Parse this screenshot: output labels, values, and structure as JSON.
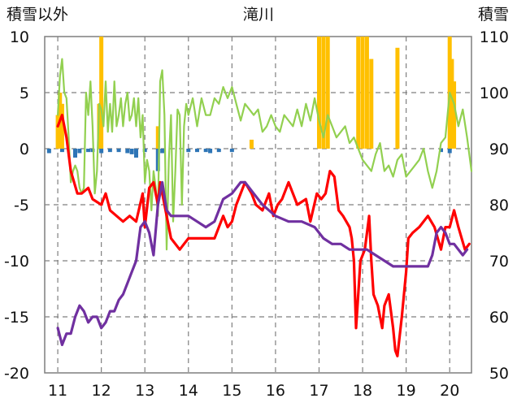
{
  "chart_data": {
    "type": "line",
    "title": "滝川",
    "ylabel_left": "積雪以外",
    "ylabel_right": "積雪",
    "xlim": [
      10.7,
      20.5
    ],
    "ylim_left": [
      -20,
      10
    ],
    "ylim_right": [
      50,
      110
    ],
    "x_ticks": [
      11,
      12,
      13,
      14,
      15,
      16,
      17,
      18,
      19,
      20
    ],
    "y_left_ticks": [
      10,
      5,
      0,
      -5,
      -10,
      -15,
      -20
    ],
    "y_right_ticks": [
      110,
      100,
      90,
      80,
      70,
      60,
      50
    ],
    "grid": "dashed",
    "colors": {
      "red": "#ff0000",
      "purple": "#7030a0",
      "green": "#92d050",
      "orange": "#ffc000",
      "blue": "#2e75b6",
      "axis": "#7f7f7f"
    },
    "series": [
      {
        "color": "red",
        "axis": "left",
        "x": [
          11.0,
          11.1,
          11.2,
          11.3,
          11.45,
          11.55,
          11.7,
          11.8,
          12.0,
          12.1,
          12.2,
          12.35,
          12.5,
          12.65,
          12.8,
          12.95,
          13.0,
          13.1,
          13.2,
          13.3,
          13.35,
          13.5,
          13.6,
          13.8,
          13.9,
          14.0,
          14.2,
          14.4,
          14.6,
          14.8,
          14.9,
          15.0,
          15.1,
          15.3,
          15.45,
          15.55,
          15.7,
          15.85,
          15.95,
          16.05,
          16.15,
          16.3,
          16.5,
          16.7,
          16.8,
          16.95,
          17.05,
          17.15,
          17.25,
          17.35,
          17.45,
          17.55,
          17.7,
          17.75,
          17.8,
          17.85,
          17.95,
          18.05,
          18.15,
          18.2,
          18.25,
          18.35,
          18.45,
          18.5,
          18.6,
          18.7,
          18.75,
          18.8,
          18.9,
          19.0,
          19.05,
          19.15,
          19.3,
          19.5,
          19.65,
          19.8,
          19.9,
          20.0,
          20.1,
          20.2,
          20.35,
          20.45
        ],
        "y": [
          2.0,
          3.0,
          1.0,
          -2.0,
          -4.0,
          -4.0,
          -3.5,
          -4.5,
          -5.0,
          -4.0,
          -5.5,
          -6.0,
          -6.5,
          -6.0,
          -6.5,
          -4.0,
          -7.0,
          -3.5,
          -3.0,
          -5.0,
          -3.0,
          -6.0,
          -8.0,
          -9.0,
          -8.5,
          -8.0,
          -8.0,
          -8.0,
          -8.0,
          -6.0,
          -7.0,
          -6.5,
          -5.0,
          -3.0,
          -4.0,
          -5.0,
          -5.5,
          -4.0,
          -6.0,
          -5.0,
          -4.5,
          -3.0,
          -5.0,
          -4.5,
          -6.5,
          -4.0,
          -4.5,
          -4.0,
          -2.0,
          -2.5,
          -5.5,
          -6.0,
          -7.0,
          -8.0,
          -10.0,
          -16.0,
          -10.0,
          -9.0,
          -6.0,
          -10.0,
          -13.0,
          -14.0,
          -16.0,
          -14.0,
          -13.0,
          -16.0,
          -18.0,
          -18.5,
          -15.0,
          -11.0,
          -8.0,
          -7.5,
          -7.0,
          -6.0,
          -7.0,
          -9.0,
          -7.0,
          -7.0,
          -5.5,
          -7.0,
          -9.0,
          -8.5
        ]
      },
      {
        "color": "purple",
        "axis": "left",
        "x": [
          11.0,
          11.1,
          11.2,
          11.3,
          11.4,
          11.5,
          11.6,
          11.7,
          11.8,
          11.9,
          12.0,
          12.1,
          12.2,
          12.3,
          12.4,
          12.5,
          12.6,
          12.7,
          12.8,
          12.9,
          13.0,
          13.1,
          13.2,
          13.3,
          13.4,
          13.5,
          13.6,
          13.8,
          14.0,
          14.2,
          14.4,
          14.6,
          14.8,
          15.0,
          15.2,
          15.3,
          15.5,
          15.7,
          16.0,
          16.3,
          16.6,
          16.9,
          17.0,
          17.1,
          17.3,
          17.5,
          17.7,
          17.9,
          18.1,
          18.3,
          18.5,
          18.7,
          18.9,
          19.1,
          19.3,
          19.5,
          19.6,
          19.7,
          19.8,
          19.9,
          20.0,
          20.1,
          20.2,
          20.3,
          20.4
        ],
        "y": [
          -16.0,
          -17.5,
          -16.5,
          -16.5,
          -15.0,
          -14.0,
          -14.5,
          -15.5,
          -15.0,
          -15.0,
          -16.0,
          -15.5,
          -14.5,
          -14.5,
          -13.5,
          -13.0,
          -12.0,
          -11.0,
          -10.0,
          -7.0,
          -6.5,
          -7.5,
          -9.5,
          -5.0,
          -3.0,
          -5.5,
          -6.0,
          -6.0,
          -6.0,
          -6.5,
          -7.0,
          -6.5,
          -4.5,
          -4.0,
          -3.0,
          -3.0,
          -4.0,
          -5.0,
          -6.0,
          -6.5,
          -6.5,
          -7.0,
          -7.5,
          -8.0,
          -8.5,
          -8.5,
          -9.0,
          -9.0,
          -9.0,
          -9.5,
          -10.0,
          -10.5,
          -10.5,
          -10.5,
          -10.5,
          -10.5,
          -9.5,
          -7.5,
          -7.0,
          -7.5,
          -8.5,
          -8.5,
          -9.0,
          -9.5,
          -9.0
        ]
      },
      {
        "color": "green",
        "axis": "left",
        "x": [
          11.0,
          11.05,
          11.1,
          11.15,
          11.2,
          11.25,
          11.3,
          11.35,
          11.4,
          11.45,
          11.5,
          11.55,
          11.6,
          11.65,
          11.7,
          11.75,
          11.8,
          11.85,
          11.9,
          11.95,
          12.0,
          12.05,
          12.1,
          12.15,
          12.2,
          12.25,
          12.3,
          12.35,
          12.4,
          12.45,
          12.5,
          12.55,
          12.6,
          12.65,
          12.7,
          12.75,
          12.8,
          12.85,
          12.9,
          12.95,
          13.0,
          13.05,
          13.1,
          13.15,
          13.2,
          13.25,
          13.3,
          13.35,
          13.4,
          13.45,
          13.5,
          13.55,
          13.6,
          13.65,
          13.7,
          13.75,
          13.8,
          13.85,
          13.9,
          13.95,
          14.0,
          14.1,
          14.2,
          14.3,
          14.4,
          14.5,
          14.6,
          14.7,
          14.8,
          14.9,
          15.0,
          15.1,
          15.2,
          15.3,
          15.4,
          15.5,
          15.6,
          15.7,
          15.8,
          15.9,
          16.0,
          16.1,
          16.2,
          16.3,
          16.4,
          16.5,
          16.6,
          16.7,
          16.8,
          16.9,
          17.0,
          17.1,
          17.2,
          17.3,
          17.4,
          17.5,
          17.6,
          17.7,
          17.8,
          17.9,
          18.0,
          18.1,
          18.2,
          18.3,
          18.4,
          18.5,
          18.6,
          18.7,
          18.8,
          18.9,
          19.0,
          19.1,
          19.2,
          19.3,
          19.4,
          19.5,
          19.6,
          19.7,
          19.8,
          19.9,
          20.0,
          20.1,
          20.2,
          20.3,
          20.4,
          20.5
        ],
        "y": [
          3.0,
          6.5,
          8.0,
          5.0,
          4.5,
          1.0,
          -3.0,
          -2.0,
          -1.5,
          -2.0,
          -3.5,
          -4.0,
          -3.5,
          5.0,
          3.0,
          6.0,
          2.0,
          -4.0,
          -2.0,
          4.0,
          3.5,
          2.0,
          6.0,
          1.5,
          4.0,
          1.5,
          6.0,
          2.0,
          3.0,
          4.5,
          2.0,
          4.0,
          5.0,
          2.5,
          3.0,
          4.5,
          2.0,
          4.5,
          1.0,
          3.0,
          -3.0,
          -1.0,
          -2.0,
          -5.5,
          -2.0,
          -3.5,
          -6.0,
          6.0,
          7.0,
          3.0,
          -9.0,
          -1.0,
          3.0,
          -6.5,
          -2.0,
          3.5,
          3.0,
          -5.0,
          2.0,
          4.0,
          3.0,
          4.5,
          2.0,
          4.5,
          3.0,
          3.0,
          4.5,
          4.0,
          5.5,
          4.5,
          5.5,
          4.0,
          2.5,
          4.0,
          3.5,
          3.0,
          3.5,
          1.5,
          2.0,
          3.0,
          2.0,
          1.5,
          3.0,
          2.5,
          2.0,
          3.5,
          2.0,
          4.0,
          2.5,
          4.5,
          2.5,
          1.0,
          3.0,
          2.0,
          1.0,
          1.5,
          2.0,
          0.5,
          1.0,
          0.0,
          -1.0,
          -1.5,
          -2.0,
          -0.5,
          0.5,
          -2.0,
          -1.5,
          -2.5,
          -1.0,
          -0.5,
          -2.5,
          -2.0,
          -1.5,
          -1.0,
          0.0,
          -2.0,
          -3.5,
          -2.0,
          0.5,
          1.0,
          5.0,
          4.0,
          2.0,
          3.5,
          1.0,
          -2.0
        ]
      },
      {
        "color": "orange",
        "type": "bar",
        "axis": "left",
        "x": [
          11.0,
          11.05,
          11.1,
          11.95,
          12.0,
          13.3,
          15.45,
          17.0,
          17.1,
          17.2,
          17.9,
          18.0,
          18.1,
          18.2,
          18.8,
          20.0,
          20.05,
          20.1
        ],
        "y": [
          3.0,
          5.0,
          4.0,
          4.0,
          10.0,
          2.0,
          0.8,
          10.0,
          10.0,
          10.0,
          10.0,
          10.0,
          10.0,
          8.0,
          9.0,
          10.0,
          8.0,
          6.0
        ]
      },
      {
        "color": "blue",
        "type": "bar",
        "axis": "left",
        "x": [
          10.8,
          11.1,
          11.4,
          11.5,
          11.7,
          11.8,
          12.0,
          12.2,
          12.4,
          12.6,
          12.7,
          12.8,
          13.0,
          13.3,
          13.4,
          14.0,
          14.2,
          14.4,
          14.5,
          14.7,
          15.0,
          19.8,
          20.0
        ],
        "y": [
          -0.4,
          -0.3,
          -0.8,
          -0.4,
          -0.3,
          -0.3,
          -0.4,
          -0.3,
          -0.3,
          -0.4,
          -0.5,
          -0.8,
          -0.3,
          -2.0,
          -0.4,
          -0.3,
          -0.3,
          -0.3,
          -0.4,
          -0.3,
          -0.3,
          -0.3,
          -0.4
        ]
      }
    ]
  }
}
